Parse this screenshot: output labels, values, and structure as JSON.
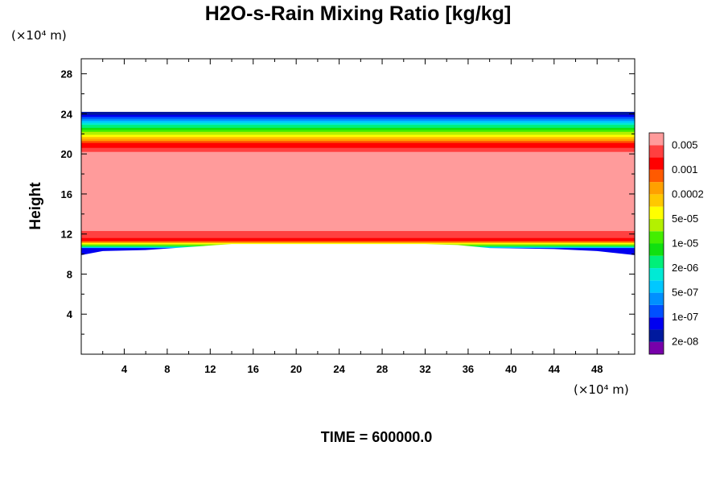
{
  "chart_data": {
    "type": "heatmap",
    "title": "H2O-s-Rain Mixing Ratio [kg/kg]",
    "ylabel": "Height",
    "x_unit": "(×10⁴ m)",
    "y_unit": "(×10⁴ m)",
    "xlim": [
      0,
      51.5
    ],
    "ylim": [
      0,
      29.5
    ],
    "x_ticks": [
      4,
      8,
      12,
      16,
      20,
      24,
      28,
      32,
      36,
      40,
      44,
      48
    ],
    "y_ticks": [
      4,
      8,
      12,
      16,
      20,
      24,
      28
    ],
    "footer": "TIME = 600000.0",
    "legend": {
      "colors": [
        "#7700aa",
        "#00199e",
        "#0000f0",
        "#0050ff",
        "#0090ff",
        "#00c8ff",
        "#00ead5",
        "#00f07a",
        "#10e010",
        "#44ee00",
        "#b4f000",
        "#ffff00",
        "#ffc800",
        "#ffa000",
        "#ff5a00",
        "#ff0000",
        "#ff4040",
        "#ff9b9b"
      ],
      "labels": [
        "2e-08",
        "1e-07",
        "5e-07",
        "2e-06",
        "1e-05",
        "5e-05",
        "0.0002",
        "0.001",
        "0.005"
      ]
    },
    "bands": [
      {
        "top": 24.2,
        "color": "#00199e"
      },
      {
        "top": 23.9,
        "color": "#0000f0"
      },
      {
        "top": 23.7,
        "color": "#0050ff"
      },
      {
        "top": 23.5,
        "color": "#0090ff"
      },
      {
        "top": 23.3,
        "color": "#00c8ff"
      },
      {
        "top": 23.1,
        "color": "#00ead5"
      },
      {
        "top": 22.9,
        "color": "#00f07a"
      },
      {
        "top": 22.6,
        "color": "#10e010"
      },
      {
        "top": 22.4,
        "color": "#44ee00"
      },
      {
        "top": 22.2,
        "color": "#b4f000"
      },
      {
        "top": 21.9,
        "color": "#ffff00"
      },
      {
        "top": 21.7,
        "color": "#ffc800"
      },
      {
        "top": 21.5,
        "color": "#ffa000"
      },
      {
        "top": 21.3,
        "color": "#ff5a00"
      },
      {
        "top": 21.1,
        "color": "#ff0000"
      },
      {
        "top": 20.6,
        "color": "#ff4040"
      },
      {
        "top": 20.2,
        "color": "#ff9b9b"
      },
      {
        "top": 12.3,
        "color": "#ff4040"
      },
      {
        "top": 11.6,
        "color": "#ff0000"
      },
      {
        "top": 11.3,
        "color": "#ff5a00"
      },
      {
        "top": 11.2,
        "color": "#ffa000"
      },
      {
        "top": 11.1,
        "color": "#ffff00"
      },
      {
        "top": 11.0,
        "color": "#b4f000"
      },
      {
        "top": 10.9,
        "color": "#44ee00"
      },
      {
        "top": 10.8,
        "color": "#00f07a"
      },
      {
        "top": 10.7,
        "color": "#00c8ff"
      },
      {
        "top": 10.6,
        "color": "#0000f0"
      }
    ],
    "bottom_edge": {
      "x": [
        0,
        2,
        6,
        10,
        14,
        20,
        26,
        32,
        35,
        38,
        44,
        48,
        51.5
      ],
      "y": [
        9.9,
        10.3,
        10.4,
        10.7,
        11.0,
        11.0,
        11.0,
        11.0,
        10.9,
        10.6,
        10.5,
        10.3,
        9.9
      ]
    }
  }
}
